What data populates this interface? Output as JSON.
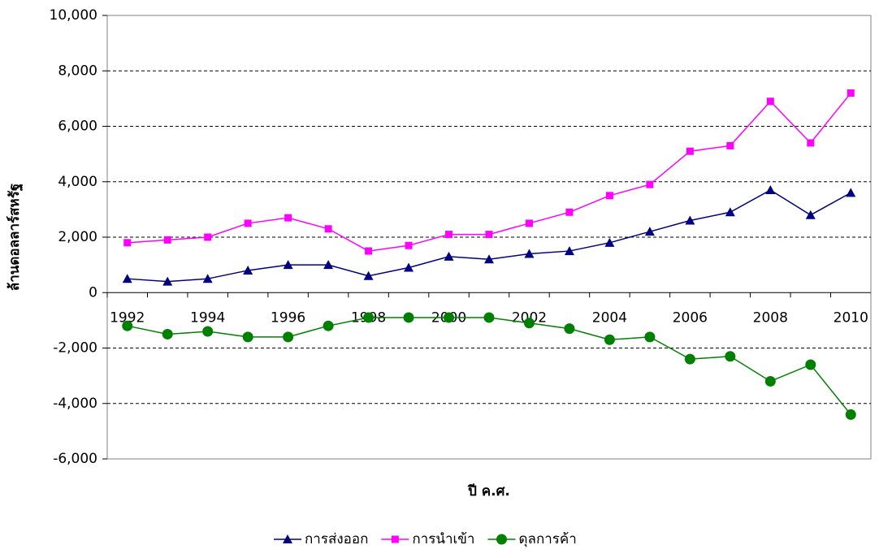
{
  "chart_data": {
    "type": "line",
    "y_label": "ล้านดอลลาร์สหรัฐ",
    "x_label": "ปี ค.ศ.",
    "categories": [
      "1992",
      null,
      "1994",
      null,
      "1996",
      null,
      "1998",
      null,
      "2000",
      null,
      "2002",
      null,
      "2004",
      null,
      "2006",
      null,
      "2008",
      null,
      "2010"
    ],
    "series": [
      {
        "name": "การส่งออก",
        "color": "#000080",
        "marker": "triangle",
        "values": [
          500,
          400,
          500,
          800,
          1000,
          1000,
          600,
          900,
          1300,
          1200,
          1400,
          1500,
          1800,
          2200,
          2600,
          2900,
          3700,
          2800,
          3600
        ]
      },
      {
        "name": "การนำเข้า",
        "color": "#ff00ff",
        "marker": "square",
        "values": [
          1800,
          1900,
          2000,
          2500,
          2700,
          2300,
          1500,
          1700,
          2100,
          2100,
          2500,
          2900,
          3500,
          3900,
          5100,
          5300,
          6900,
          5400,
          7200
        ]
      },
      {
        "name": "ดุลการค้า",
        "color": "#008000",
        "marker": "circle",
        "values": [
          -1200,
          -1500,
          -1400,
          -1600,
          -1600,
          -1200,
          -900,
          -900,
          -900,
          -900,
          -1100,
          -1300,
          -1700,
          -1600,
          -2400,
          -2300,
          -3200,
          -2600,
          -4400
        ]
      }
    ],
    "ylim": [
      -6000,
      10000
    ],
    "yticks": [
      {
        "value": -6000,
        "label": "-6,000"
      },
      {
        "value": -4000,
        "label": "-4,000"
      },
      {
        "value": -2000,
        "label": "-2,000"
      },
      0,
      {
        "value": 2000,
        "label": "2,000"
      },
      {
        "value": 4000,
        "label": "4,000"
      },
      {
        "value": 6000,
        "label": "6,000"
      },
      {
        "value": 8000,
        "label": "8,000"
      },
      {
        "value": 10000,
        "label": "10,000"
      }
    ],
    "grid": true,
    "legend": "bottom"
  }
}
